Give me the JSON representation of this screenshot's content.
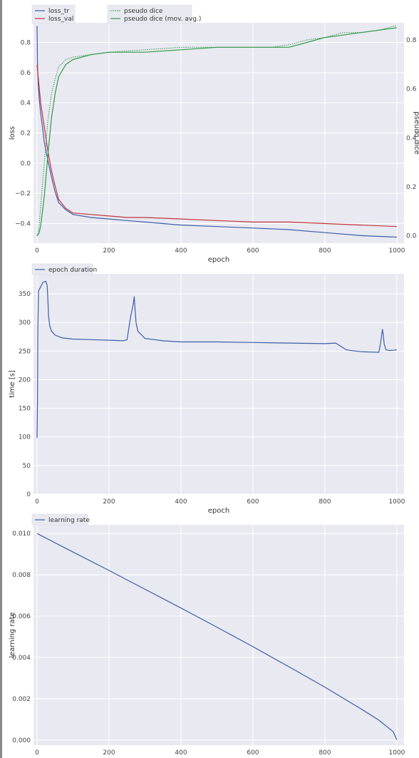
{
  "colors": {
    "background": "#e9e9f1",
    "grid": "#ffffff",
    "loss_tr": "#3a5ea8",
    "loss_val": "#c0343c",
    "pseudo_dice": "#2f9a48",
    "pseudo_dice_mov_avg": "#2f9a48",
    "epoch_duration": "#3a5ea8",
    "learning_rate": "#3a5ea8"
  },
  "chart_data": [
    {
      "type": "line",
      "xlabel": "epoch",
      "ylabel": "loss",
      "ylabel_right": "pseudo dice",
      "xlim": [
        -10,
        1020
      ],
      "ylim": [
        -0.53,
        0.93
      ],
      "ylim_right": [
        -0.03,
        0.87
      ],
      "x_ticks": [
        "0",
        "200",
        "400",
        "600",
        "800",
        "1000"
      ],
      "y_ticks": [
        "0.8",
        "0.6",
        "0.4",
        "0.2",
        "0.0",
        "−0.2",
        "−0.4"
      ],
      "y_ticks_right": [
        "0.8",
        "0.6",
        "0.4",
        "0.2",
        "0.0"
      ],
      "grid": true,
      "legend_left": [
        "loss_tr",
        "loss_val"
      ],
      "legend_right": [
        "pseudo dice",
        "pseudo dice (mov. avg.)"
      ],
      "series": [
        {
          "name": "loss_tr",
          "axis": "left",
          "style": "solid",
          "x": [
            0,
            1,
            3,
            6,
            10,
            15,
            20,
            30,
            40,
            50,
            60,
            80,
            100,
            150,
            200,
            250,
            300,
            400,
            500,
            600,
            700,
            800,
            900,
            1000
          ],
          "y": [
            0.91,
            0.65,
            0.52,
            0.42,
            0.33,
            0.24,
            0.14,
            0.02,
            -0.09,
            -0.19,
            -0.26,
            -0.31,
            -0.34,
            -0.36,
            -0.37,
            -0.38,
            -0.39,
            -0.41,
            -0.42,
            -0.43,
            -0.44,
            -0.46,
            -0.48,
            -0.49
          ]
        },
        {
          "name": "loss_val",
          "axis": "left",
          "style": "solid",
          "x": [
            0,
            5,
            10,
            20,
            30,
            40,
            50,
            60,
            80,
            100,
            150,
            200,
            250,
            300,
            400,
            500,
            600,
            700,
            800,
            900,
            1000
          ],
          "y": [
            0.65,
            0.52,
            0.4,
            0.24,
            0.08,
            -0.05,
            -0.15,
            -0.24,
            -0.3,
            -0.33,
            -0.34,
            -0.35,
            -0.36,
            -0.36,
            -0.37,
            -0.38,
            -0.39,
            -0.39,
            -0.4,
            -0.41,
            -0.42
          ]
        },
        {
          "name": "pseudo dice",
          "axis": "right",
          "style": "dotted",
          "x": [
            0,
            5,
            10,
            20,
            30,
            40,
            50,
            60,
            80,
            100,
            150,
            200,
            300,
            400,
            500,
            600,
            650,
            700,
            750,
            800,
            850,
            900,
            950,
            1000
          ],
          "y": [
            0.0,
            0.03,
            0.12,
            0.3,
            0.47,
            0.58,
            0.64,
            0.69,
            0.72,
            0.73,
            0.74,
            0.75,
            0.76,
            0.77,
            0.77,
            0.77,
            0.77,
            0.78,
            0.8,
            0.81,
            0.83,
            0.83,
            0.84,
            0.86
          ]
        },
        {
          "name": "pseudo dice (mov. avg.)",
          "axis": "right",
          "style": "solid",
          "x": [
            0,
            5,
            10,
            20,
            30,
            40,
            50,
            60,
            80,
            100,
            150,
            200,
            300,
            400,
            500,
            600,
            650,
            700,
            750,
            800,
            850,
            900,
            950,
            1000
          ],
          "y": [
            0.0,
            0.01,
            0.04,
            0.16,
            0.33,
            0.48,
            0.58,
            0.65,
            0.7,
            0.72,
            0.74,
            0.75,
            0.75,
            0.76,
            0.77,
            0.77,
            0.77,
            0.77,
            0.79,
            0.81,
            0.82,
            0.83,
            0.84,
            0.85
          ]
        }
      ]
    },
    {
      "type": "line",
      "xlabel": "epoch",
      "ylabel": "time [s]",
      "xlim": [
        -10,
        1020
      ],
      "ylim": [
        0,
        385
      ],
      "x_ticks": [
        "0",
        "200",
        "400",
        "600",
        "800",
        "1000"
      ],
      "y_ticks": [
        "350",
        "300",
        "250",
        "200",
        "150",
        "100",
        "50",
        "0"
      ],
      "grid": true,
      "legend": [
        "epoch duration"
      ],
      "series": [
        {
          "name": "epoch duration",
          "x": [
            0,
            1,
            2,
            4,
            8,
            12,
            16,
            20,
            24,
            28,
            30,
            32,
            35,
            40,
            50,
            70,
            100,
            150,
            200,
            240,
            250,
            255,
            260,
            265,
            268,
            270,
            272,
            275,
            280,
            300,
            350,
            400,
            500,
            600,
            700,
            800,
            830,
            840,
            860,
            900,
            950,
            955,
            960,
            962,
            965,
            970,
            980,
            1000
          ],
          "y": [
            98,
            160,
            290,
            355,
            360,
            365,
            370,
            371,
            372,
            365,
            340,
            310,
            295,
            285,
            278,
            273,
            271,
            270,
            269,
            268,
            270,
            290,
            310,
            325,
            335,
            345,
            325,
            300,
            285,
            272,
            268,
            266,
            266,
            265,
            264,
            263,
            264,
            260,
            252,
            249,
            248,
            265,
            288,
            280,
            262,
            252,
            251,
            252
          ]
        }
      ]
    },
    {
      "type": "line",
      "xlabel": "epoch",
      "ylabel": "learning rate",
      "xlim": [
        -10,
        1020
      ],
      "ylim": [
        -0.00025,
        0.01042
      ],
      "x_ticks": [
        "0",
        "200",
        "400",
        "600",
        "800",
        "1000"
      ],
      "y_ticks": [
        "0.010",
        "0.008",
        "0.006",
        "0.004",
        "0.002",
        "0.000"
      ],
      "grid": true,
      "legend": [
        "learning rate"
      ],
      "series": [
        {
          "name": "learning rate",
          "x": [
            0,
            100,
            200,
            300,
            400,
            500,
            600,
            700,
            800,
            900,
            950,
            990,
            1000
          ],
          "y": [
            0.01,
            0.0091,
            0.00821,
            0.0073,
            0.00639,
            0.00546,
            0.00452,
            0.00355,
            0.00256,
            0.00151,
            0.00096,
            0.0004,
            1e-05
          ]
        }
      ]
    }
  ]
}
